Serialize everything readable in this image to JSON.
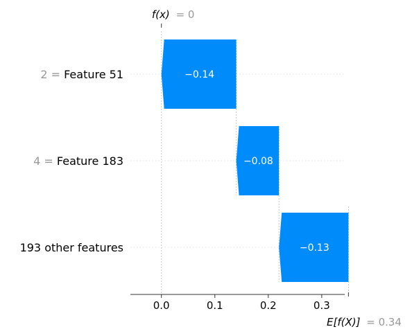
{
  "chart_data": {
    "type": "waterfall",
    "rows": [
      {
        "value_label": "2",
        "feature": "Feature 51",
        "contribution": -0.14,
        "label": "−0.14",
        "start": 0.14,
        "end": 0.0
      },
      {
        "value_label": "4",
        "feature": "Feature 183",
        "contribution": -0.08,
        "label": "−0.08",
        "start": 0.22,
        "end": 0.14
      },
      {
        "value_label": "",
        "feature": "193 other features",
        "contribution": -0.13,
        "label": "−0.13",
        "start": 0.35,
        "end": 0.22
      }
    ],
    "fx_label": "f(x)",
    "fx_value": "= 0",
    "base_label": "E[f(X)]",
    "base_value": "= 0.34",
    "x_ticks": [
      "0.0",
      "0.1",
      "0.2",
      "0.3"
    ],
    "x_tick_values": [
      0.0,
      0.1,
      0.2,
      0.3
    ],
    "xlim": [
      -0.058,
      0.343
    ],
    "grid": "dotted horizontal",
    "colors": {
      "negative": "#008bfb",
      "muted_text": "#999999",
      "guide": "#bbbbbb"
    }
  }
}
